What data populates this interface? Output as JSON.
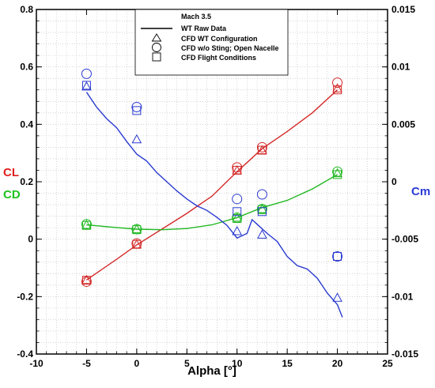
{
  "chart_data": {
    "type": "line",
    "x_axis": {
      "label": "Alpha [°]",
      "range": [
        -10,
        25
      ],
      "ticks": [
        "-10",
        "-5",
        "0",
        "5",
        "10",
        "15",
        "20",
        "25"
      ]
    },
    "y_left": {
      "range": [
        -0.4,
        0.8
      ],
      "ticks": [
        "-0.4",
        "-0.2",
        "0",
        "0.2",
        "0.4",
        "0.6",
        "0.8"
      ],
      "labels": [
        {
          "text": "CL",
          "color": "#e0201d"
        },
        {
          "text": "CD",
          "color": "#1ec21e"
        }
      ]
    },
    "y_right": {
      "range": [
        -0.015,
        0.015
      ],
      "ticks": [
        "-0.015",
        "-0.01",
        "-0.005",
        "0",
        "0.005",
        "0.01",
        "0.015"
      ],
      "label": {
        "text": "Cm",
        "color": "#2b3bd6"
      }
    },
    "grid": true,
    "legend": {
      "placement": "top-center",
      "title": "Mach 3.5",
      "entries": [
        {
          "label": "WT Raw Data",
          "marker": "line"
        },
        {
          "label": "CFD WT Configuration",
          "marker": "triangle"
        },
        {
          "label": "CFD w/o Sting; Open Nacelle",
          "marker": "circle"
        },
        {
          "label": "CFD Flight Conditions",
          "marker": "square"
        }
      ]
    },
    "series": [
      {
        "coefficient": "CL",
        "axis": "left",
        "color": "#d42a2a",
        "wt_raw": [
          [
            -5,
            -0.142
          ],
          [
            -2,
            -0.07
          ],
          [
            0,
            -0.02
          ],
          [
            2.5,
            0.035
          ],
          [
            5,
            0.09
          ],
          [
            7.5,
            0.15
          ],
          [
            10,
            0.235
          ],
          [
            12.5,
            0.315
          ],
          [
            15,
            0.375
          ],
          [
            17.5,
            0.44
          ],
          [
            20,
            0.52
          ]
        ],
        "cfd_wt": [
          [
            -5,
            -0.142
          ],
          [
            0,
            -0.018
          ],
          [
            10,
            0.24
          ],
          [
            12.5,
            0.31
          ],
          [
            20,
            0.525
          ]
        ],
        "cfd_open": [
          [
            -5,
            -0.148
          ],
          [
            0,
            -0.015
          ],
          [
            10,
            0.25
          ],
          [
            12.5,
            0.32
          ],
          [
            20,
            0.545
          ]
        ],
        "cfd_flight": [
          [
            -5,
            -0.143
          ],
          [
            0,
            -0.018
          ],
          [
            10,
            0.24
          ],
          [
            12.5,
            0.31
          ],
          [
            20,
            0.52
          ]
        ]
      },
      {
        "coefficient": "CD",
        "axis": "left",
        "color": "#22b822",
        "wt_raw": [
          [
            -5,
            0.05
          ],
          [
            -2.5,
            0.042
          ],
          [
            0,
            0.035
          ],
          [
            2.5,
            0.033
          ],
          [
            5,
            0.037
          ],
          [
            7.5,
            0.05
          ],
          [
            10,
            0.075
          ],
          [
            12.5,
            0.11
          ],
          [
            15,
            0.135
          ],
          [
            17.5,
            0.175
          ],
          [
            20,
            0.225
          ]
        ],
        "cfd_wt": [
          [
            -5,
            0.05
          ],
          [
            0,
            0.035
          ],
          [
            10,
            0.075
          ],
          [
            12.5,
            0.105
          ],
          [
            20,
            0.23
          ]
        ],
        "cfd_open": [
          [
            -5,
            0.052
          ],
          [
            0,
            0.035
          ],
          [
            10,
            0.075
          ],
          [
            12.5,
            0.105
          ],
          [
            20,
            0.235
          ]
        ],
        "cfd_flight": [
          [
            -5,
            0.048
          ],
          [
            0,
            0.033
          ],
          [
            10,
            0.072
          ],
          [
            12.5,
            0.103
          ],
          [
            20,
            0.225
          ]
        ]
      },
      {
        "coefficient": "Cm",
        "axis": "right",
        "color": "#2a3ad0",
        "wt_raw": [
          [
            -5,
            0.0078
          ],
          [
            -4,
            0.0065
          ],
          [
            -3,
            0.0055
          ],
          [
            -2,
            0.0047
          ],
          [
            -1,
            0.0035
          ],
          [
            0,
            0.0024
          ],
          [
            1,
            0.0018
          ],
          [
            2,
            0.0008
          ],
          [
            3,
            0.0
          ],
          [
            4,
            -0.0008
          ],
          [
            5,
            -0.0015
          ],
          [
            6,
            -0.0021
          ],
          [
            7,
            -0.0025
          ],
          [
            8,
            -0.0031
          ],
          [
            9,
            -0.0038
          ],
          [
            10,
            -0.0049
          ],
          [
            11,
            -0.0045
          ],
          [
            11.5,
            -0.0033
          ],
          [
            12,
            -0.0037
          ],
          [
            13,
            -0.0045
          ],
          [
            14,
            -0.0052
          ],
          [
            15,
            -0.0065
          ],
          [
            16,
            -0.0073
          ],
          [
            17,
            -0.0076
          ],
          [
            18,
            -0.0084
          ],
          [
            19,
            -0.0097
          ],
          [
            20,
            -0.0107
          ],
          [
            20.5,
            -0.0118
          ]
        ],
        "cfd_wt": [
          [
            -5,
            0.0083
          ],
          [
            0,
            0.0037
          ],
          [
            10,
            -0.0043
          ],
          [
            12.5,
            -0.0046
          ],
          [
            20,
            -0.0101
          ]
        ],
        "cfd_open": [
          [
            -5,
            0.0094
          ],
          [
            0,
            0.0065
          ],
          [
            10,
            -0.0015
          ],
          [
            12.5,
            -0.0011
          ],
          [
            20,
            -0.0065
          ]
        ],
        "cfd_flight": [
          [
            -5,
            0.0084
          ],
          [
            0,
            0.0062
          ],
          [
            10,
            -0.0026
          ],
          [
            12.5,
            -0.0026
          ],
          [
            20,
            -0.0065
          ]
        ]
      }
    ]
  }
}
